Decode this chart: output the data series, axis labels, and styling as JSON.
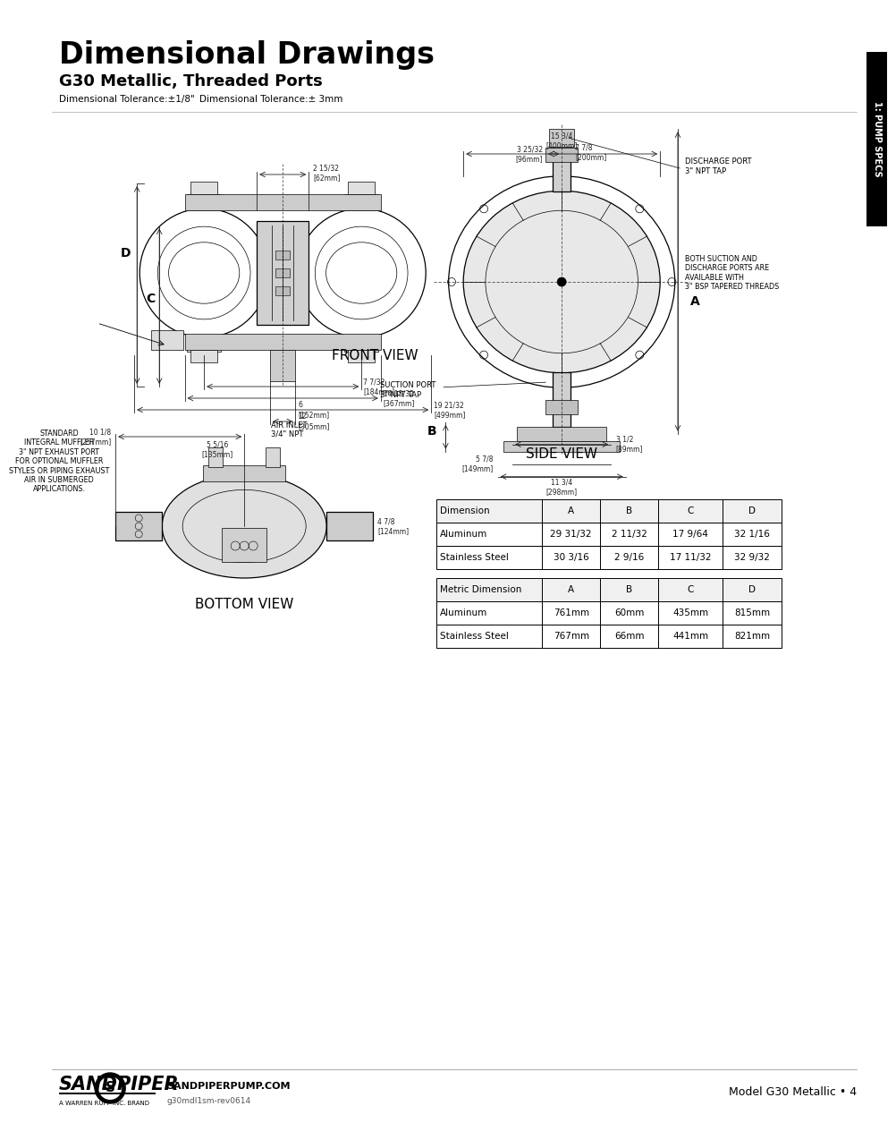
{
  "title": "Dimensional Drawings",
  "subtitle": "G30 Metallic, Threaded Ports",
  "tolerance1": "Dimensional Tolerance:±1/8\"",
  "tolerance2": "Dimensional Tolerance:± 3mm",
  "tab_label": "1: PUMP SPECS",
  "front_view_label": "FRONT VIEW",
  "bottom_view_label": "BOTTOM VIEW",
  "side_view_label": "SIDE VIEW",
  "table1_headers": [
    "Dimension",
    "A",
    "B",
    "C",
    "D"
  ],
  "table1_rows": [
    [
      "Aluminum",
      "29 31/32",
      "2 11/32",
      "17 9/64",
      "32 1/16"
    ],
    [
      "Stainless Steel",
      "30 3/16",
      "2 9/16",
      "17 11/32",
      "32 9/32"
    ]
  ],
  "table2_headers": [
    "Metric Dimension",
    "A",
    "B",
    "C",
    "D"
  ],
  "table2_rows": [
    [
      "Aluminum",
      "761mm",
      "60mm",
      "435mm",
      "815mm"
    ],
    [
      "Stainless Steel",
      "767mm",
      "66mm",
      "441mm",
      "821mm"
    ]
  ],
  "footer_logo": "SANDPIPER",
  "footer_url": "SANDPIPERPUMP.COM",
  "footer_doc": "g30mdl1sm-rev0614",
  "footer_right": "Model G30 Metallic • 4",
  "bg_color": "#ffffff",
  "text_color": "#000000",
  "tab_bg": "#000000",
  "tab_text": "#ffffff",
  "note_text": "STANDARD\nINTEGRAL MUFFLER\n3\" NPT EXHAUST PORT\nFOR OPTIONAL MUFFLER\nSTYLES OR PIPING EXHAUST\nAIR IN SUBMERGED\nAPPLICATIONS.",
  "discharge_text": "DISCHARGE PORT\n3\" NPT TAP",
  "suction_text": "SUCTION PORT\n3\" NPT TAP",
  "bsp_text": "BOTH SUCTION AND\nDISCHARGE PORTS ARE\nAVAILABLE WITH\n3\" BSP TAPERED THREADS",
  "air_inlet_text": "AIR INLET\n3/4\" NPT"
}
